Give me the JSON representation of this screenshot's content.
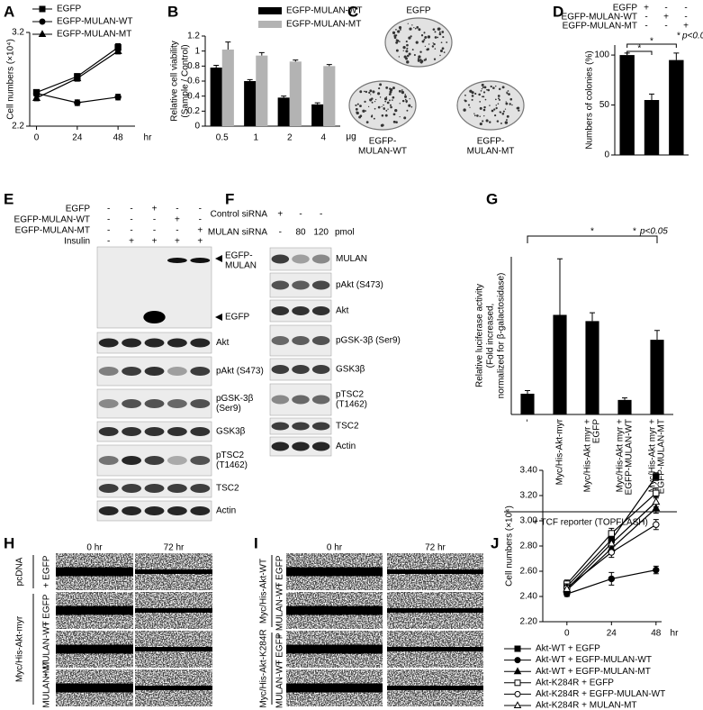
{
  "chart_data": [
    {
      "panel": "A",
      "type": "line",
      "x": [
        0,
        24,
        48
      ],
      "xlim": [
        -4,
        58
      ],
      "xticks": [
        0,
        24,
        48
      ],
      "x_unit": "hr",
      "ylim": [
        2.2,
        3.2
      ],
      "yticks": [
        2.2,
        3.2
      ],
      "ylabel": [
        "Cell numbers (×10⁴)"
      ],
      "series": [
        {
          "name": "EGFP",
          "marker": "square",
          "filled": true,
          "color": "#000000",
          "values": [
            2.56,
            2.73,
            3.04
          ],
          "errors": [
            0.03,
            0.03,
            0.04
          ]
        },
        {
          "name": "EGFP-MULAN-WT",
          "marker": "circle",
          "filled": true,
          "color": "#000000",
          "values": [
            2.55,
            2.45,
            2.51
          ],
          "errors": [
            0.03,
            0.03,
            0.03
          ]
        },
        {
          "name": "EGFP-MULAN-MT",
          "marker": "triangle",
          "filled": true,
          "color": "#000000",
          "values": [
            2.5,
            2.71,
            3.0
          ],
          "errors": [
            0.03,
            0.03,
            0.03
          ]
        }
      ]
    },
    {
      "panel": "B",
      "type": "bar",
      "categories": [
        "0.5",
        "1",
        "2",
        "4"
      ],
      "x_unit": "μg",
      "ylim": [
        0,
        1.2
      ],
      "yticks": [
        0,
        0.2,
        0.4,
        0.6,
        0.8,
        1,
        1.2
      ],
      "ylabel": [
        "Relative cell viability",
        "(Sample / Control)"
      ],
      "series": [
        {
          "name": "EGFP-MULAN-WT",
          "color": "#000000",
          "values": [
            0.78,
            0.6,
            0.38,
            0.29
          ],
          "errors": [
            0.03,
            0.02,
            0.02,
            0.02
          ]
        },
        {
          "name": "EGFP-MULAN-MT",
          "color": "#b3b3b3",
          "values": [
            1.02,
            0.94,
            0.86,
            0.8
          ],
          "errors": [
            0.1,
            0.04,
            0.02,
            0.02
          ]
        }
      ]
    },
    {
      "panel": "D",
      "type": "bar",
      "values": [
        100,
        55,
        95
      ],
      "errors": [
        2,
        6,
        7
      ],
      "color": "#000000",
      "ylim": [
        0,
        110
      ],
      "yticks": [
        0,
        50,
        100
      ],
      "ylabel": [
        "Numbers of colonies (%)"
      ],
      "conditions": [
        {
          "name": "EGFP",
          "signs": [
            "+",
            "-",
            "-"
          ]
        },
        {
          "name": "EGFP-MULAN-WT",
          "signs": [
            "-",
            "+",
            "-"
          ]
        },
        {
          "name": "EGFP-MULAN-MT",
          "signs": [
            "-",
            "-",
            "+"
          ]
        }
      ],
      "significance": [
        "*",
        "*"
      ],
      "note_mark": "*",
      "note": "p<0.05"
    },
    {
      "panel": "G",
      "type": "bar",
      "categories": [
        [
          "-"
        ],
        [
          "Myc/His-Akt-myr"
        ],
        [
          "Myc/His-Akt myr +",
          "EGFP"
        ],
        [
          "Myc/His-Akt myr +",
          "EGFP-MULAN-WT"
        ],
        [
          "Myc/His-Akt myr +",
          "EGFP-MULAN-MT"
        ]
      ],
      "values": [
        1,
        4.8,
        4.5,
        0.7,
        3.6
      ],
      "errors": [
        0.15,
        2.7,
        0.4,
        0.1,
        0.45
      ],
      "color": "#000000",
      "ylim": [
        0,
        7.6
      ],
      "ylabel": [
        "Relative luciferase activity",
        "(Fold increased,",
        "normalized for β-galactosidase)"
      ],
      "significance": [
        "*"
      ],
      "note_mark": "*",
      "note": "p<0.05",
      "xlabel": "+ TCF reporter (TOPFLASH)"
    },
    {
      "panel": "J",
      "type": "line",
      "x": [
        0,
        24,
        48
      ],
      "xlim": [
        -13,
        51
      ],
      "xticks": [
        0,
        24,
        48
      ],
      "x_unit": "hr",
      "ylim": [
        2.2,
        3.4
      ],
      "yticks": [
        {
          "value": 2.2,
          "label": "2.20"
        },
        {
          "value": 2.4,
          "label": "2.40"
        },
        {
          "value": 2.6,
          "label": "2.60"
        },
        {
          "value": 2.8,
          "label": "2.80"
        },
        {
          "value": 3.0,
          "label": "3.00"
        },
        {
          "value": 3.2,
          "label": "3.20"
        },
        {
          "value": 3.4,
          "label": "3.40"
        }
      ],
      "ylabel": [
        "Cell numbers (×10⁴)"
      ],
      "series": [
        {
          "name": "Akt-WT + EGFP",
          "marker": "square",
          "filled": true,
          "color": "#000000",
          "values": [
            2.48,
            2.85,
            3.35
          ],
          "errors": [
            0.03,
            0.04,
            0.03
          ]
        },
        {
          "name": "Akt-WT + EGFP-MULAN-WT",
          "marker": "circle",
          "filled": true,
          "color": "#000000",
          "values": [
            2.42,
            2.54,
            2.61
          ],
          "errors": [
            0.02,
            0.05,
            0.03
          ]
        },
        {
          "name": "Akt-WT + EGFP-MULAN-MT",
          "marker": "triangle",
          "filled": true,
          "color": "#000000",
          "values": [
            2.45,
            2.78,
            3.1
          ],
          "errors": [
            0.03,
            0.04,
            0.04
          ]
        },
        {
          "name": "Akt-K284R + EGFP",
          "marker": "square",
          "filled": false,
          "color": "#000000",
          "values": [
            2.5,
            2.9,
            3.22
          ],
          "errors": [
            0.03,
            0.04,
            0.04
          ]
        },
        {
          "name": "Akt-K284R + EGFP-MULAN-WT",
          "marker": "circle",
          "filled": false,
          "color": "#000000",
          "values": [
            2.47,
            2.75,
            2.97
          ],
          "errors": [
            0.03,
            0.04,
            0.04
          ]
        },
        {
          "name": "Akt-K284R + MULAN-MT",
          "marker": "triangle",
          "filled": false,
          "color": "#000000",
          "values": [
            2.46,
            2.82,
            3.15
          ],
          "errors": [
            0.03,
            0.04,
            0.04
          ]
        }
      ]
    }
  ],
  "colony_C": {
    "panel": "C",
    "dishes": [
      [
        "EGFP"
      ],
      [
        "EGFP-",
        "MULAN-WT"
      ],
      [
        "EGFP-",
        "MULAN-MT"
      ]
    ]
  },
  "blot_E": {
    "panel": "E",
    "conditions": [
      {
        "name": "EGFP",
        "signs": [
          "-",
          "-",
          "+",
          "-",
          "-"
        ]
      },
      {
        "name": "EGFP-MULAN-WT",
        "signs": [
          "-",
          "-",
          "-",
          "+",
          "-"
        ]
      },
      {
        "name": "EGFP-MULAN-MT",
        "signs": [
          "-",
          "-",
          "-",
          "-",
          "+"
        ]
      },
      {
        "name": "Insulin",
        "signs": [
          "-",
          "+",
          "+",
          "+",
          "+"
        ]
      }
    ],
    "arrows": [
      [
        "EGFP-",
        "MULAN"
      ],
      [
        "EGFP"
      ]
    ],
    "rows": [
      [
        "Akt"
      ],
      [
        "pAkt (S473)"
      ],
      [
        "pGSK-3β",
        "(Ser9)"
      ],
      [
        "GSK3β"
      ],
      [
        "pTSC2",
        "(T1462)"
      ],
      [
        "TSC2"
      ],
      [
        "Actin"
      ]
    ]
  },
  "blot_F": {
    "panel": "F",
    "conditions": [
      {
        "name": "Control siRNA",
        "signs": [
          "+",
          "-",
          "-"
        ]
      },
      {
        "name": "MULAN siRNA",
        "signs": [
          "-",
          "80",
          "120"
        ],
        "unit": "pmol"
      }
    ],
    "rows": [
      [
        "MULAN"
      ],
      [
        "pAkt (S473)"
      ],
      [
        "Akt"
      ],
      [
        "pGSK-3β (Ser9)"
      ],
      [
        "GSK3β"
      ],
      [
        "pTSC2",
        "(T1462)"
      ],
      [
        "TSC2"
      ],
      [
        "Actin"
      ]
    ]
  },
  "wound_H": {
    "panel": "H",
    "times": [
      "0 hr",
      "72 hr"
    ],
    "groups": [
      {
        "name": "pcDNA",
        "rows": [
          "+ EGFP"
        ]
      },
      {
        "name": "Myc/His-Akt-myr",
        "rows": [
          "+ EGFP",
          "+ MULAN-WT",
          "+ MULAN-MT"
        ]
      }
    ]
  },
  "wound_I": {
    "panel": "I",
    "times": [
      "0 hr",
      "72 hr"
    ],
    "groups": [
      {
        "name": "Myc/His-Akt-WT",
        "rows": [
          "+ EGFP",
          "+ MULAN-WT"
        ]
      },
      {
        "name": "Myc/His-Akt-K284R",
        "rows": [
          "+ EGFP",
          "+ MULAN-WT"
        ]
      }
    ]
  }
}
